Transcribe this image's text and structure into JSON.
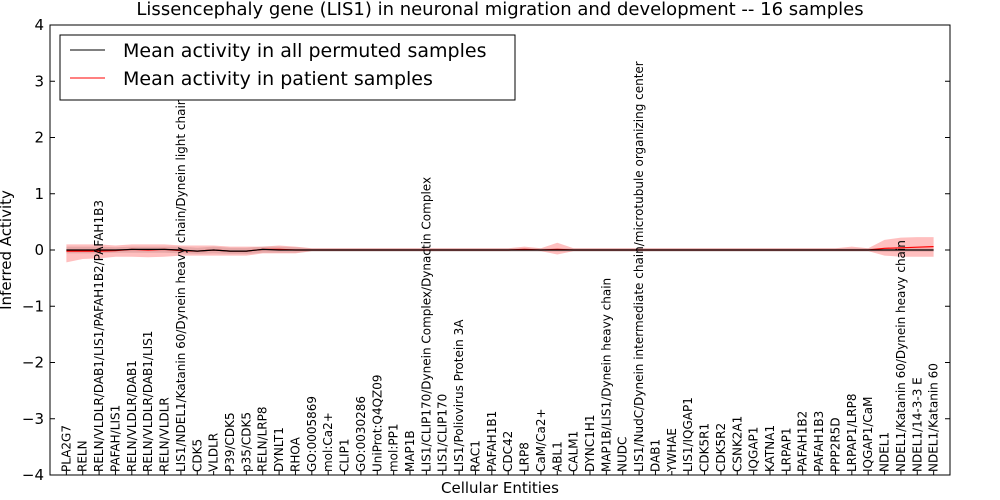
{
  "chart_data": {
    "type": "line",
    "title": "Lissencephaly gene (LIS1) in neuronal migration and development -- 16 samples",
    "xlabel": "Cellular Entities",
    "ylabel": "Inferred Activity",
    "ylim": [
      -4,
      4
    ],
    "yticks": [
      {
        "value": -4,
        "label": "−4"
      },
      {
        "value": -3,
        "label": "−3"
      },
      {
        "value": -2,
        "label": "−2"
      },
      {
        "value": -1,
        "label": "−1"
      },
      {
        "value": 0,
        "label": "0"
      },
      {
        "value": 1,
        "label": "1"
      },
      {
        "value": 2,
        "label": "2"
      },
      {
        "value": 3,
        "label": "3"
      },
      {
        "value": 4,
        "label": "4"
      }
    ],
    "grid": false,
    "legend_position": "top-left",
    "categories": [
      "PLA2G7",
      "RELN",
      "RELN/VLDLR/DAB1/LIS1/PAFAH1B2/PAFAH1B3",
      "PAFAH/LIS1",
      "RELN/VLDLR/DAB1",
      "RELN/VLDLR/DAB1/LIS1",
      "RELN/VLDLR",
      "LIS1/NDEL1/Katanin 60/Dynein heavy chain/Dynein light chain",
      "CDK5",
      "VLDLR",
      "P39/CDK5",
      "p35/CDK5",
      "RELN/LRP8",
      "DYNLT1",
      "RHOA",
      "GO:0005869",
      "mol:Ca2+",
      "CLIP1",
      "GO:0030286",
      "UniProt:Q4QZ09",
      "mol:PP1",
      "MAP1B",
      "LIS1/CLIP170/Dynein Complex/Dynactin Complex",
      "LIS1/CLIP170",
      "LIS1/Poliovirus Protein 3A",
      "RAC1",
      "PAFAH1B1",
      "CDC42",
      "LRP8",
      "CaM/Ca2+",
      "ABL1",
      "CALM1",
      "DYNC1H1",
      "MAP1B/LIS1/Dynein heavy chain",
      "NUDC",
      "LIS1/NudC/Dynein intermediate chain/microtubule organizing center",
      "DAB1",
      "YWHAE",
      "LIS1/IQGAP1",
      "CDK5R1",
      "CDK5R2",
      "CSNK2A1",
      "IQGAP1",
      "KATNA1",
      "LRPAP1",
      "PAFAH1B2",
      "PAFAH1B3",
      "PPP2R5D",
      "LRPAP1/LRP8",
      "IQGAP1/CaM",
      "NDEL1",
      "NDEL1/Katanin 60/Dynein heavy chain",
      "NDEL1/14-3-3 E",
      "NDEL1/Katanin 60"
    ],
    "series": [
      {
        "name": "Mean activity in all permuted samples",
        "color": "#000000",
        "values": [
          0.0,
          0.0,
          0.0,
          0.0,
          0.01,
          0.01,
          0.01,
          0.0,
          -0.02,
          0.0,
          -0.02,
          -0.02,
          0.01,
          0.0,
          0.0,
          0.0,
          0.0,
          0.0,
          0.0,
          0.0,
          0.0,
          0.0,
          0.0,
          0.0,
          0.0,
          0.0,
          0.0,
          0.0,
          0.0,
          0.0,
          0.0,
          0.0,
          0.0,
          0.0,
          0.0,
          0.0,
          0.0,
          0.0,
          0.0,
          0.0,
          0.0,
          0.0,
          0.0,
          0.0,
          0.0,
          0.0,
          0.0,
          0.0,
          0.0,
          0.0,
          0.0,
          0.0,
          0.0,
          0.0
        ],
        "band_low": [
          -0.06,
          -0.06,
          -0.06,
          -0.05,
          -0.05,
          -0.05,
          -0.05,
          -0.06,
          -0.07,
          -0.06,
          -0.07,
          -0.07,
          -0.05,
          -0.05,
          -0.05,
          -0.03,
          -0.03,
          -0.03,
          -0.03,
          -0.03,
          -0.03,
          -0.03,
          -0.03,
          -0.03,
          -0.03,
          -0.03,
          -0.03,
          -0.03,
          -0.03,
          -0.03,
          -0.03,
          -0.03,
          -0.03,
          -0.03,
          -0.03,
          -0.03,
          -0.03,
          -0.03,
          -0.03,
          -0.03,
          -0.03,
          -0.03,
          -0.03,
          -0.03,
          -0.03,
          -0.03,
          -0.03,
          -0.03,
          -0.03,
          -0.03,
          -0.03,
          -0.03,
          -0.03,
          -0.03
        ],
        "band_high": [
          0.06,
          0.06,
          0.06,
          0.05,
          0.06,
          0.06,
          0.06,
          0.06,
          0.04,
          0.06,
          0.04,
          0.04,
          0.06,
          0.06,
          0.05,
          0.03,
          0.03,
          0.03,
          0.03,
          0.03,
          0.03,
          0.03,
          0.03,
          0.03,
          0.03,
          0.03,
          0.03,
          0.03,
          0.03,
          0.03,
          0.03,
          0.03,
          0.03,
          0.03,
          0.03,
          0.03,
          0.03,
          0.03,
          0.03,
          0.03,
          0.03,
          0.03,
          0.03,
          0.03,
          0.03,
          0.03,
          0.03,
          0.03,
          0.03,
          0.03,
          0.03,
          0.03,
          0.03,
          0.03
        ]
      },
      {
        "name": "Mean activity in patient samples",
        "color": "#ff0000",
        "values": [
          -0.02,
          -0.02,
          -0.02,
          -0.01,
          0.01,
          0.0,
          0.01,
          -0.01,
          -0.02,
          0.0,
          -0.02,
          -0.02,
          0.01,
          0.01,
          0.0,
          0.0,
          0.0,
          0.0,
          0.0,
          0.0,
          0.0,
          0.0,
          0.0,
          0.0,
          0.0,
          0.0,
          0.0,
          0.0,
          0.01,
          0.0,
          0.01,
          0.0,
          0.0,
          0.0,
          0.0,
          0.0,
          0.0,
          0.0,
          0.0,
          0.0,
          0.0,
          0.0,
          0.0,
          0.0,
          0.0,
          0.0,
          0.0,
          0.0,
          0.0,
          0.0,
          0.03,
          0.04,
          0.05,
          0.06
        ],
        "band_low": [
          -0.22,
          -0.16,
          -0.15,
          -0.12,
          -0.12,
          -0.13,
          -0.12,
          -0.1,
          -0.1,
          -0.1,
          -0.1,
          -0.1,
          -0.06,
          -0.06,
          -0.06,
          -0.02,
          -0.02,
          -0.02,
          -0.02,
          -0.02,
          -0.02,
          -0.02,
          -0.02,
          -0.02,
          -0.02,
          -0.02,
          -0.02,
          -0.02,
          -0.02,
          -0.02,
          -0.08,
          -0.02,
          -0.02,
          -0.02,
          -0.02,
          -0.02,
          -0.02,
          -0.02,
          -0.02,
          -0.02,
          -0.02,
          -0.02,
          -0.02,
          -0.02,
          -0.02,
          -0.02,
          -0.02,
          -0.02,
          -0.02,
          -0.02,
          -0.1,
          -0.12,
          -0.12,
          -0.12
        ],
        "band_high": [
          0.1,
          0.1,
          0.1,
          0.08,
          0.1,
          0.1,
          0.1,
          0.08,
          0.08,
          0.08,
          0.06,
          0.06,
          0.06,
          0.08,
          0.06,
          0.03,
          0.03,
          0.03,
          0.03,
          0.03,
          0.03,
          0.03,
          0.03,
          0.03,
          0.03,
          0.03,
          0.03,
          0.03,
          0.06,
          0.03,
          0.13,
          0.03,
          0.03,
          0.03,
          0.03,
          0.03,
          0.03,
          0.03,
          0.03,
          0.03,
          0.03,
          0.03,
          0.03,
          0.03,
          0.03,
          0.03,
          0.03,
          0.03,
          0.06,
          0.03,
          0.18,
          0.22,
          0.23,
          0.23
        ]
      }
    ]
  }
}
